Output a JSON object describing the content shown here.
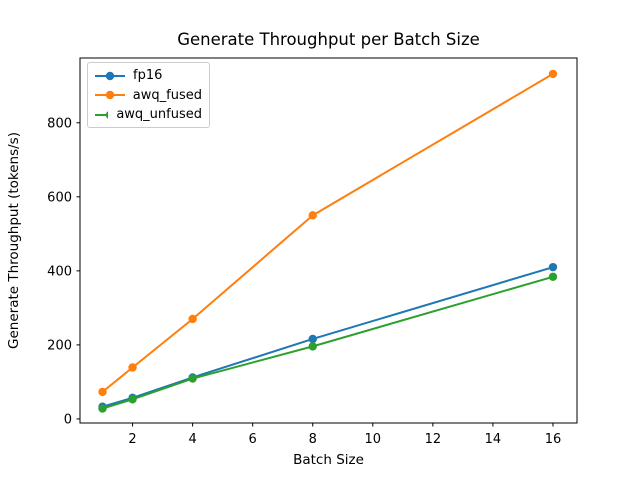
{
  "chart_data": {
    "type": "line",
    "title": "Generate Throughput per Batch Size",
    "xlabel": "Batch Size",
    "ylabel": "Generate Throughput (tokens/s)",
    "x": [
      1,
      2,
      4,
      8,
      16
    ],
    "series": [
      {
        "name": "fp16",
        "color": "#1f77b4",
        "values": [
          33,
          57,
          112,
          216,
          410
        ]
      },
      {
        "name": "awq_fused",
        "color": "#ff7f0e",
        "values": [
          73,
          139,
          270,
          550,
          932
        ]
      },
      {
        "name": "awq_unfused",
        "color": "#2ca02c",
        "values": [
          28,
          53,
          109,
          196,
          384
        ]
      }
    ],
    "xticks": [
      2,
      4,
      6,
      8,
      10,
      12,
      14,
      16
    ],
    "yticks": [
      0,
      200,
      400,
      600,
      800
    ],
    "xlim": [
      0.25,
      16.8
    ],
    "ylim": [
      -11,
      975
    ],
    "grid": false,
    "legend_position": "upper left",
    "marker": "circle",
    "background_color": "#ffffff",
    "text_color": "#000000",
    "spine_color": "#000000"
  }
}
